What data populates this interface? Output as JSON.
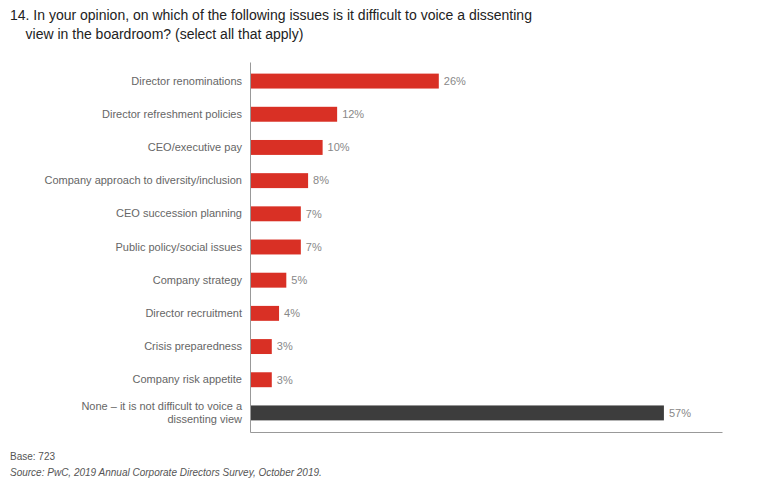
{
  "chart_data": {
    "type": "bar",
    "orientation": "horizontal",
    "title": "14. In your opinion, on which of the following issues is it difficult to voice a dissenting\n    view in the boardroom? (select all that apply)",
    "categories": [
      "Director renominations",
      "Director refreshment policies",
      "CEO/executive pay",
      "Company approach to diversity/inclusion",
      "CEO succession planning",
      "Public policy/social issues",
      "Company strategy",
      "Director recruitment",
      "Crisis preparedness",
      "Company risk appetite",
      "None – it is not difficult to voice a\n    dissenting view"
    ],
    "values": [
      26,
      12,
      10,
      8,
      7,
      7,
      5,
      4,
      3,
      3,
      57
    ],
    "value_labels": [
      "26%",
      "12%",
      "10%",
      "8%",
      "7%",
      "7%",
      "5%",
      "4%",
      "3%",
      "3%",
      "57%"
    ],
    "colors": [
      "#d93025",
      "#d93025",
      "#d93025",
      "#d93025",
      "#d93025",
      "#d93025",
      "#d93025",
      "#d93025",
      "#d93025",
      "#d93025",
      "#3d3d3d"
    ],
    "data_labels": true,
    "xlim": [
      0,
      65
    ],
    "grid": false,
    "tick_labels": "y",
    "annotations": [
      "Base: 723",
      "Source: PwC, 2019 Annual Corporate Directors Survey, October 2019."
    ]
  }
}
